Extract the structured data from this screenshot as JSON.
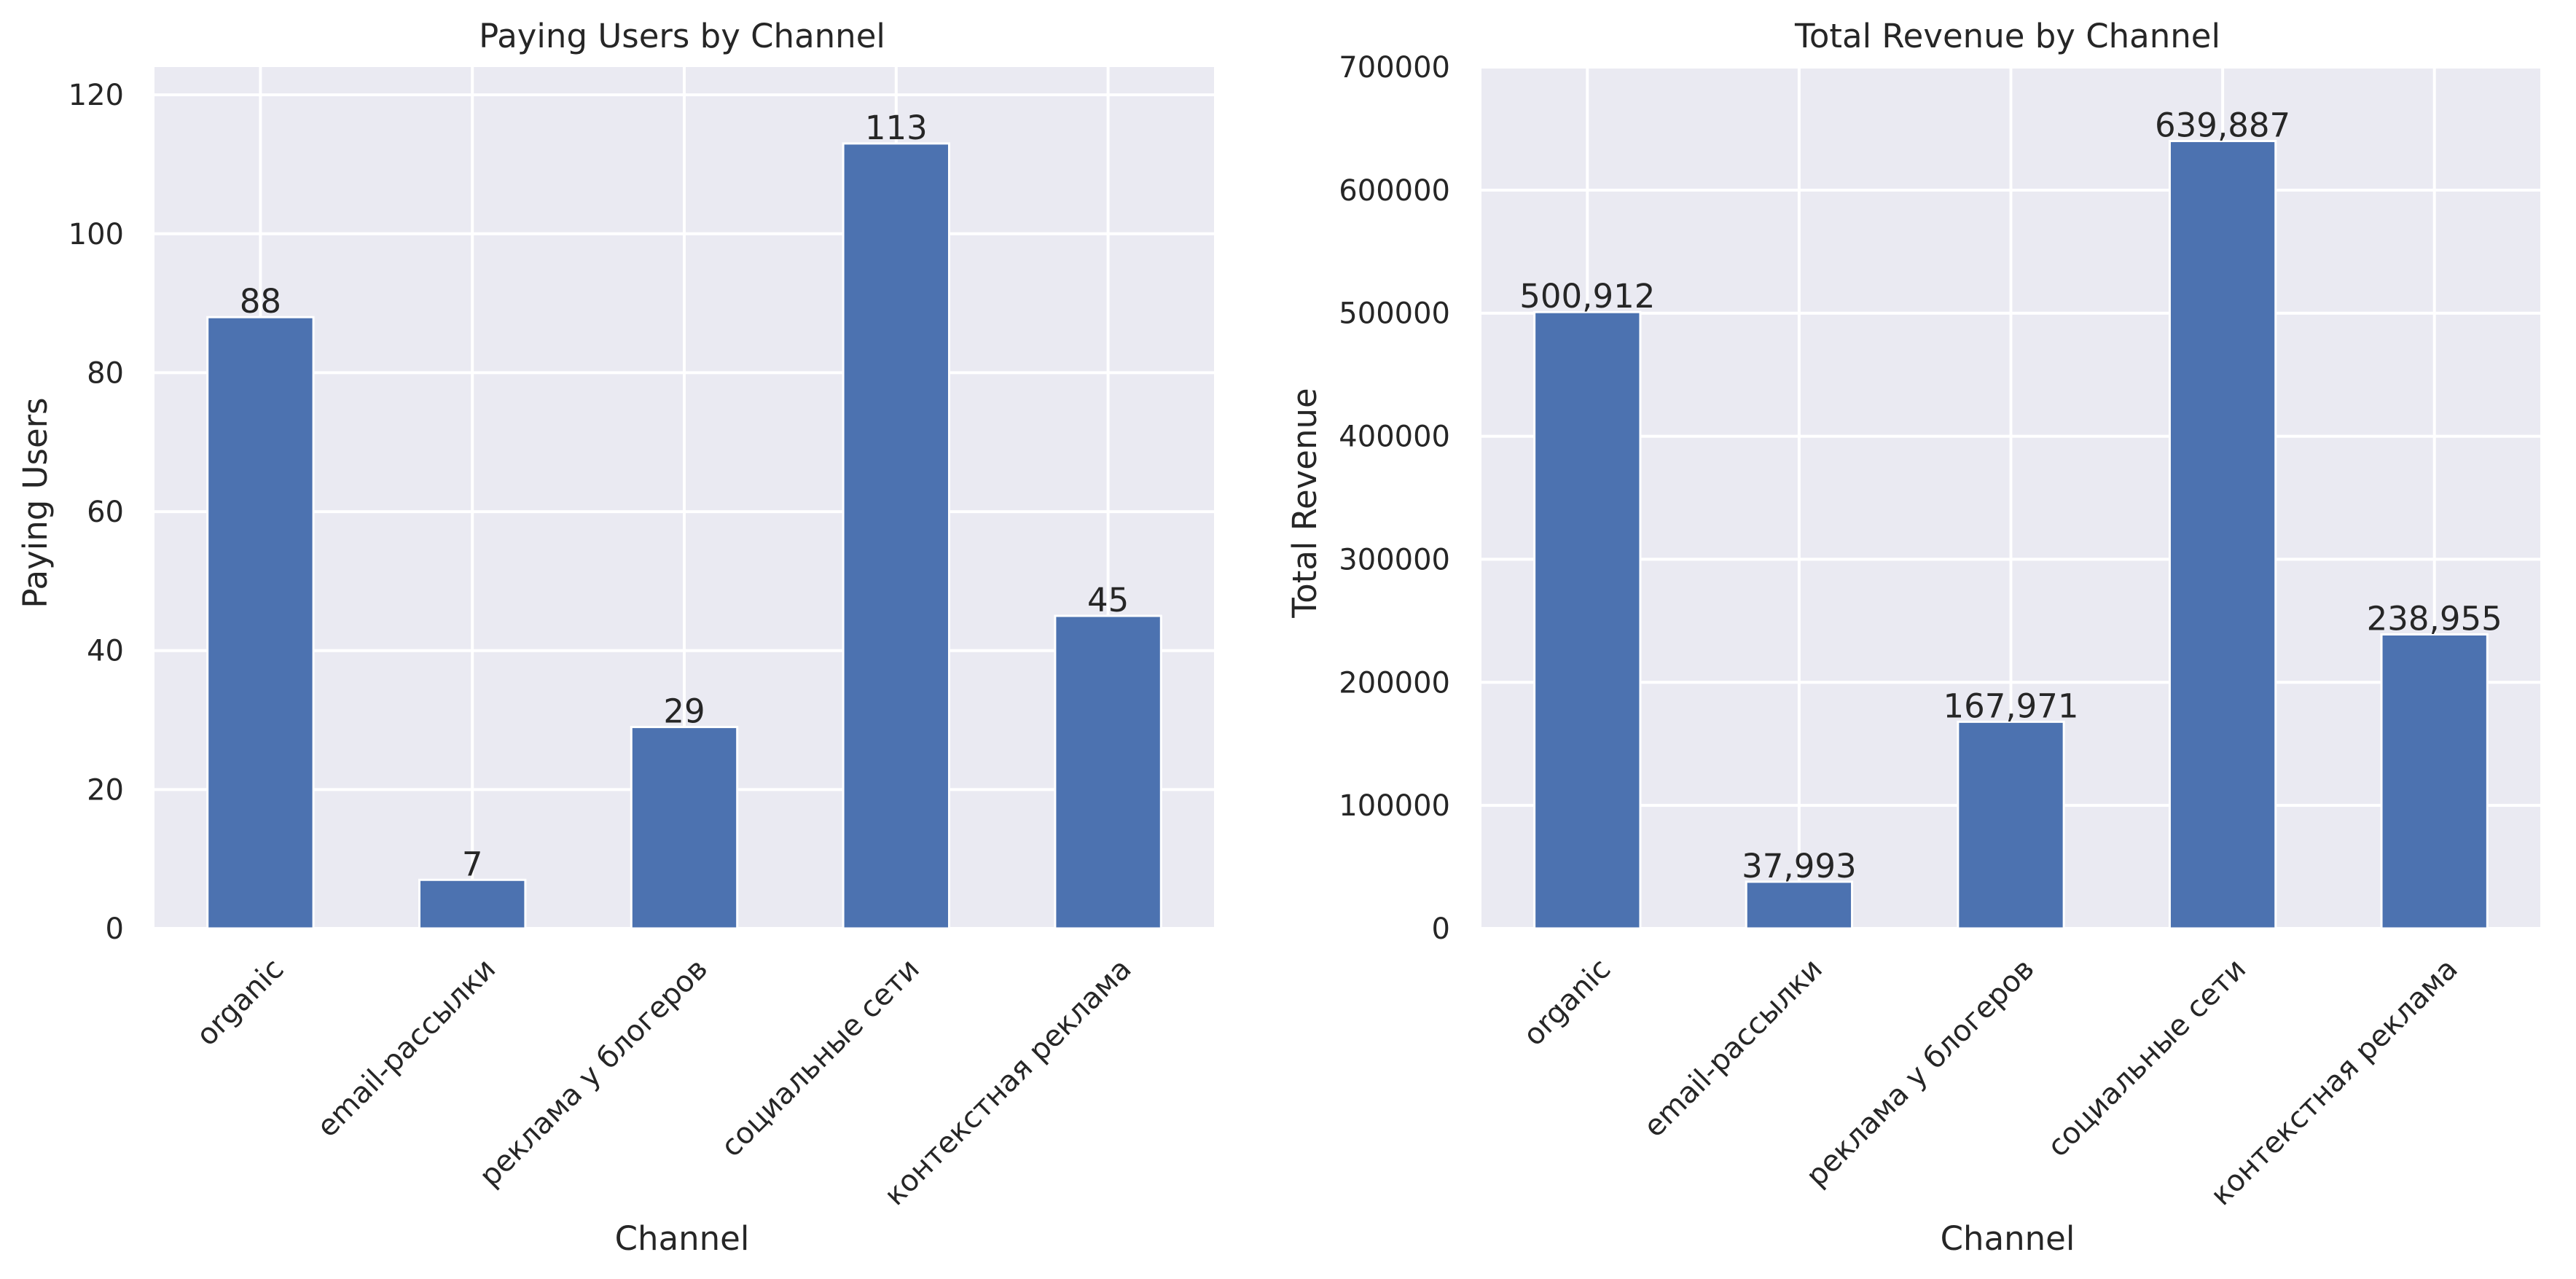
{
  "colors": {
    "bar": "#4c72b0",
    "plot_background": "#eaeaf2",
    "grid": "#ffffff",
    "text": "#262626"
  },
  "chart_data": [
    {
      "type": "bar",
      "title": "Paying Users by Channel",
      "xlabel": "Channel",
      "ylabel": "Paying Users",
      "categories": [
        "organic",
        "email-рассылки",
        "реклама у блогеров",
        "социальные сети",
        "контекстная реклама"
      ],
      "values": [
        88,
        7,
        29,
        113,
        45
      ],
      "value_labels": [
        "88",
        "7",
        "29",
        "113",
        "45"
      ],
      "yticks": [
        0,
        20,
        40,
        60,
        80,
        100,
        120
      ],
      "ylim": [
        0,
        124
      ],
      "grid": true
    },
    {
      "type": "bar",
      "title": "Total Revenue by Channel",
      "xlabel": "Channel",
      "ylabel": "Total Revenue",
      "categories": [
        "organic",
        "email-рассылки",
        "реклама у блогеров",
        "социальные сети",
        "контекстная реклама"
      ],
      "values": [
        500912,
        37993,
        167971,
        639887,
        238955
      ],
      "value_labels": [
        "500,912",
        "37,993",
        "167,971",
        "639,887",
        "238,955"
      ],
      "yticks": [
        0,
        100000,
        200000,
        300000,
        400000,
        500000,
        600000,
        700000
      ],
      "ylim": [
        0,
        700000
      ],
      "grid": true
    }
  ]
}
